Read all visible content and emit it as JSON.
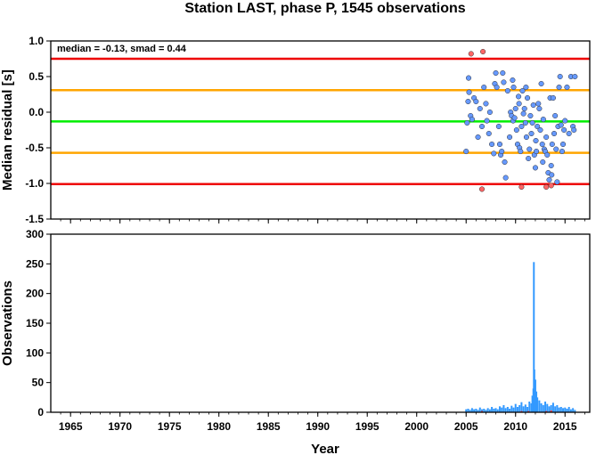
{
  "chart_data": [
    {
      "type": "scatter",
      "title": "Station LAST, phase P, 1545 observations",
      "xlabel": "",
      "ylabel": "Median residual [s]",
      "annotation": "median = -0.13, smad = 0.44",
      "xlim": [
        1963,
        2017.5
      ],
      "ylim": [
        -1.5,
        1.0
      ],
      "y_ticks": [
        "1.0",
        "0.5",
        "0.0",
        "-0.5",
        "-1.0",
        "-1.5"
      ],
      "reference_lines": [
        {
          "name": "median",
          "y": -0.13,
          "color": "#00ee00"
        },
        {
          "name": "+1 smad",
          "y": 0.31,
          "color": "#ffa500"
        },
        {
          "name": "-1 smad",
          "y": -0.57,
          "color": "#ffa500"
        },
        {
          "name": "+2 smad",
          "y": 0.75,
          "color": "#ee0000"
        },
        {
          "name": "-2 smad",
          "y": -1.01,
          "color": "#ee0000"
        }
      ],
      "series": [
        {
          "color": "#6699ff",
          "points": [
            [
              2005.0,
              -0.55
            ],
            [
              2005.1,
              -0.15
            ],
            [
              2005.2,
              0.15
            ],
            [
              2005.25,
              0.48
            ],
            [
              2005.3,
              0.28
            ],
            [
              2005.45,
              -0.05
            ],
            [
              2005.6,
              -0.1
            ],
            [
              2005.8,
              0.2
            ],
            [
              2006.0,
              0.15
            ],
            [
              2006.2,
              -0.35
            ],
            [
              2006.4,
              0.05
            ],
            [
              2006.6,
              -0.2
            ],
            [
              2006.8,
              0.35
            ],
            [
              2007.0,
              0.12
            ],
            [
              2007.1,
              -0.12
            ],
            [
              2007.3,
              -0.3
            ],
            [
              2007.4,
              0.0
            ],
            [
              2007.6,
              -0.45
            ],
            [
              2007.8,
              -0.58
            ],
            [
              2007.9,
              0.4
            ],
            [
              2008.0,
              0.55
            ],
            [
              2008.1,
              0.35
            ],
            [
              2008.3,
              -0.2
            ],
            [
              2008.4,
              -0.45
            ],
            [
              2008.5,
              -0.6
            ],
            [
              2008.6,
              -0.55
            ],
            [
              2008.7,
              0.55
            ],
            [
              2008.8,
              0.42
            ],
            [
              2008.9,
              -0.7
            ],
            [
              2009.0,
              -0.92
            ],
            [
              2009.2,
              0.3
            ],
            [
              2009.4,
              -0.35
            ],
            [
              2009.5,
              0.0
            ],
            [
              2009.6,
              -0.05
            ],
            [
              2009.7,
              0.45
            ],
            [
              2009.75,
              -0.12
            ],
            [
              2009.8,
              0.35
            ],
            [
              2009.9,
              -0.08
            ],
            [
              2010.0,
              0.05
            ],
            [
              2010.1,
              -0.25
            ],
            [
              2010.2,
              -0.45
            ],
            [
              2010.3,
              0.22
            ],
            [
              2010.35,
              0.12
            ],
            [
              2010.4,
              -0.5
            ],
            [
              2010.5,
              -0.55
            ],
            [
              2010.6,
              -0.2
            ],
            [
              2010.7,
              0.3
            ],
            [
              2010.8,
              -0.02
            ],
            [
              2010.9,
              0.05
            ],
            [
              2011.0,
              -0.15
            ],
            [
              2011.05,
              0.35
            ],
            [
              2011.1,
              -0.35
            ],
            [
              2011.2,
              0.2
            ],
            [
              2011.3,
              -0.65
            ],
            [
              2011.4,
              -0.52
            ],
            [
              2011.5,
              -0.05
            ],
            [
              2011.6,
              -0.3
            ],
            [
              2011.7,
              -0.15
            ],
            [
              2011.8,
              0.1
            ],
            [
              2011.9,
              -0.6
            ],
            [
              2012.0,
              -0.78
            ],
            [
              2012.05,
              -0.4
            ],
            [
              2012.1,
              -0.55
            ],
            [
              2012.2,
              -0.2
            ],
            [
              2012.3,
              0.12
            ],
            [
              2012.4,
              0.05
            ],
            [
              2012.5,
              -0.25
            ],
            [
              2012.6,
              0.4
            ],
            [
              2012.7,
              -0.45
            ],
            [
              2012.75,
              -0.7
            ],
            [
              2012.8,
              -0.1
            ],
            [
              2012.9,
              -0.52
            ],
            [
              2013.0,
              -0.55
            ],
            [
              2013.1,
              -0.35
            ],
            [
              2013.2,
              -0.6
            ],
            [
              2013.3,
              -0.85
            ],
            [
              2013.4,
              -0.95
            ],
            [
              2013.5,
              0.2
            ],
            [
              2013.6,
              -0.75
            ],
            [
              2013.65,
              -0.88
            ],
            [
              2013.7,
              -0.45
            ],
            [
              2013.8,
              0.2
            ],
            [
              2013.9,
              -0.3
            ],
            [
              2014.0,
              -0.05
            ],
            [
              2014.1,
              -0.52
            ],
            [
              2014.2,
              -0.98
            ],
            [
              2014.3,
              -0.2
            ],
            [
              2014.4,
              0.35
            ],
            [
              2014.5,
              0.5
            ],
            [
              2014.6,
              -0.18
            ],
            [
              2014.7,
              -0.55
            ],
            [
              2014.8,
              -0.45
            ],
            [
              2014.9,
              -0.25
            ],
            [
              2015.0,
              -0.12
            ],
            [
              2015.2,
              0.35
            ],
            [
              2015.4,
              -0.3
            ],
            [
              2015.6,
              0.5
            ],
            [
              2015.8,
              -0.2
            ],
            [
              2015.9,
              -0.25
            ],
            [
              2016.0,
              0.5
            ]
          ]
        },
        {
          "color": "#ff6666",
          "points": [
            [
              2005.5,
              0.82
            ],
            [
              2006.7,
              0.85
            ],
            [
              2006.6,
              -1.08
            ],
            [
              2010.6,
              -1.05
            ],
            [
              2013.1,
              -1.05
            ],
            [
              2013.6,
              -1.03
            ]
          ]
        }
      ]
    },
    {
      "type": "bar",
      "xlabel": "Year",
      "ylabel": "Observations",
      "xlim": [
        1963,
        2017.5
      ],
      "ylim": [
        0,
        300
      ],
      "y_ticks": [
        "300",
        "250",
        "200",
        "150",
        "100",
        "50",
        "0"
      ],
      "x_ticks": [
        "1965",
        "1970",
        "1975",
        "1980",
        "1985",
        "1990",
        "1995",
        "2000",
        "2005",
        "2010",
        "2015"
      ],
      "series": [
        {
          "color": "#3399ff",
          "points": [
            [
              2005.0,
              5
            ],
            [
              2005.2,
              6
            ],
            [
              2005.4,
              4
            ],
            [
              2005.6,
              7
            ],
            [
              2005.8,
              5
            ],
            [
              2006.0,
              6
            ],
            [
              2006.2,
              4
            ],
            [
              2006.4,
              8
            ],
            [
              2006.6,
              5
            ],
            [
              2006.8,
              6
            ],
            [
              2007.0,
              4
            ],
            [
              2007.2,
              7
            ],
            [
              2007.4,
              5
            ],
            [
              2007.6,
              9
            ],
            [
              2007.8,
              6
            ],
            [
              2008.0,
              7
            ],
            [
              2008.2,
              5
            ],
            [
              2008.4,
              10
            ],
            [
              2008.6,
              8
            ],
            [
              2008.8,
              12
            ],
            [
              2009.0,
              7
            ],
            [
              2009.2,
              9
            ],
            [
              2009.4,
              6
            ],
            [
              2009.6,
              11
            ],
            [
              2009.8,
              8
            ],
            [
              2010.0,
              14
            ],
            [
              2010.2,
              9
            ],
            [
              2010.4,
              12
            ],
            [
              2010.6,
              17
            ],
            [
              2010.8,
              10
            ],
            [
              2011.0,
              13
            ],
            [
              2011.2,
              9
            ],
            [
              2011.4,
              18
            ],
            [
              2011.6,
              15
            ],
            [
              2011.7,
              28
            ],
            [
              2011.8,
              40
            ],
            [
              2011.85,
              253
            ],
            [
              2011.9,
              72
            ],
            [
              2012.0,
              55
            ],
            [
              2012.1,
              35
            ],
            [
              2012.2,
              25
            ],
            [
              2012.4,
              20
            ],
            [
              2012.6,
              15
            ],
            [
              2012.8,
              12
            ],
            [
              2013.0,
              18
            ],
            [
              2013.2,
              14
            ],
            [
              2013.4,
              10
            ],
            [
              2013.6,
              12
            ],
            [
              2013.8,
              16
            ],
            [
              2014.0,
              10
            ],
            [
              2014.2,
              12
            ],
            [
              2014.4,
              8
            ],
            [
              2014.6,
              9
            ],
            [
              2014.8,
              7
            ],
            [
              2015.0,
              8
            ],
            [
              2015.2,
              6
            ],
            [
              2015.4,
              9
            ],
            [
              2015.6,
              5
            ],
            [
              2015.8,
              7
            ],
            [
              2016.0,
              4
            ]
          ]
        },
        {
          "color": "#ff3333",
          "points": [
            [
              2006.6,
              2
            ],
            [
              2010.6,
              2
            ],
            [
              2011.3,
              2
            ],
            [
              2013.1,
              2
            ],
            [
              2013.6,
              3
            ]
          ]
        }
      ]
    }
  ]
}
